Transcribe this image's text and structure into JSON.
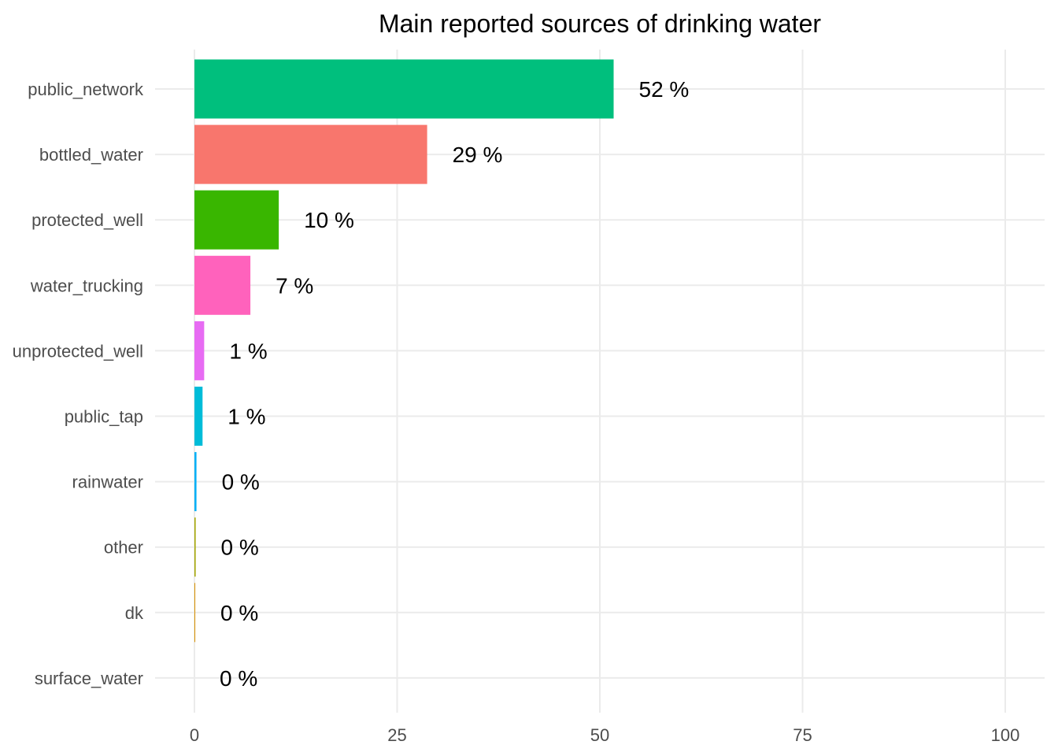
{
  "chart_data": {
    "type": "bar",
    "orientation": "horizontal",
    "title": "Main reported sources of drinking water",
    "xlabel": "",
    "ylabel": "",
    "xlim": [
      0,
      100
    ],
    "x_ticks": [
      0,
      25,
      50,
      75,
      100
    ],
    "grid": true,
    "legend": "none",
    "categories": [
      "public_network",
      "bottled_water",
      "protected_well",
      "water_trucking",
      "unprotected_well",
      "public_tap",
      "rainwater",
      "other",
      "dk",
      "surface_water"
    ],
    "values": [
      51.7,
      28.7,
      10.4,
      6.9,
      1.2,
      1.0,
      0.25,
      0.15,
      0.1,
      0.0
    ],
    "data_labels": [
      "52 %",
      "29 %",
      "10 %",
      "7 %",
      "1 %",
      "1 %",
      "0 %",
      "0 %",
      "0 %",
      "0 %"
    ],
    "colors": [
      "#00BF7D",
      "#F8766D",
      "#39B600",
      "#FF62BC",
      "#E76BF3",
      "#00BCD8",
      "#00B0F6",
      "#A3A500",
      "#D89000",
      "#9590FF"
    ]
  }
}
